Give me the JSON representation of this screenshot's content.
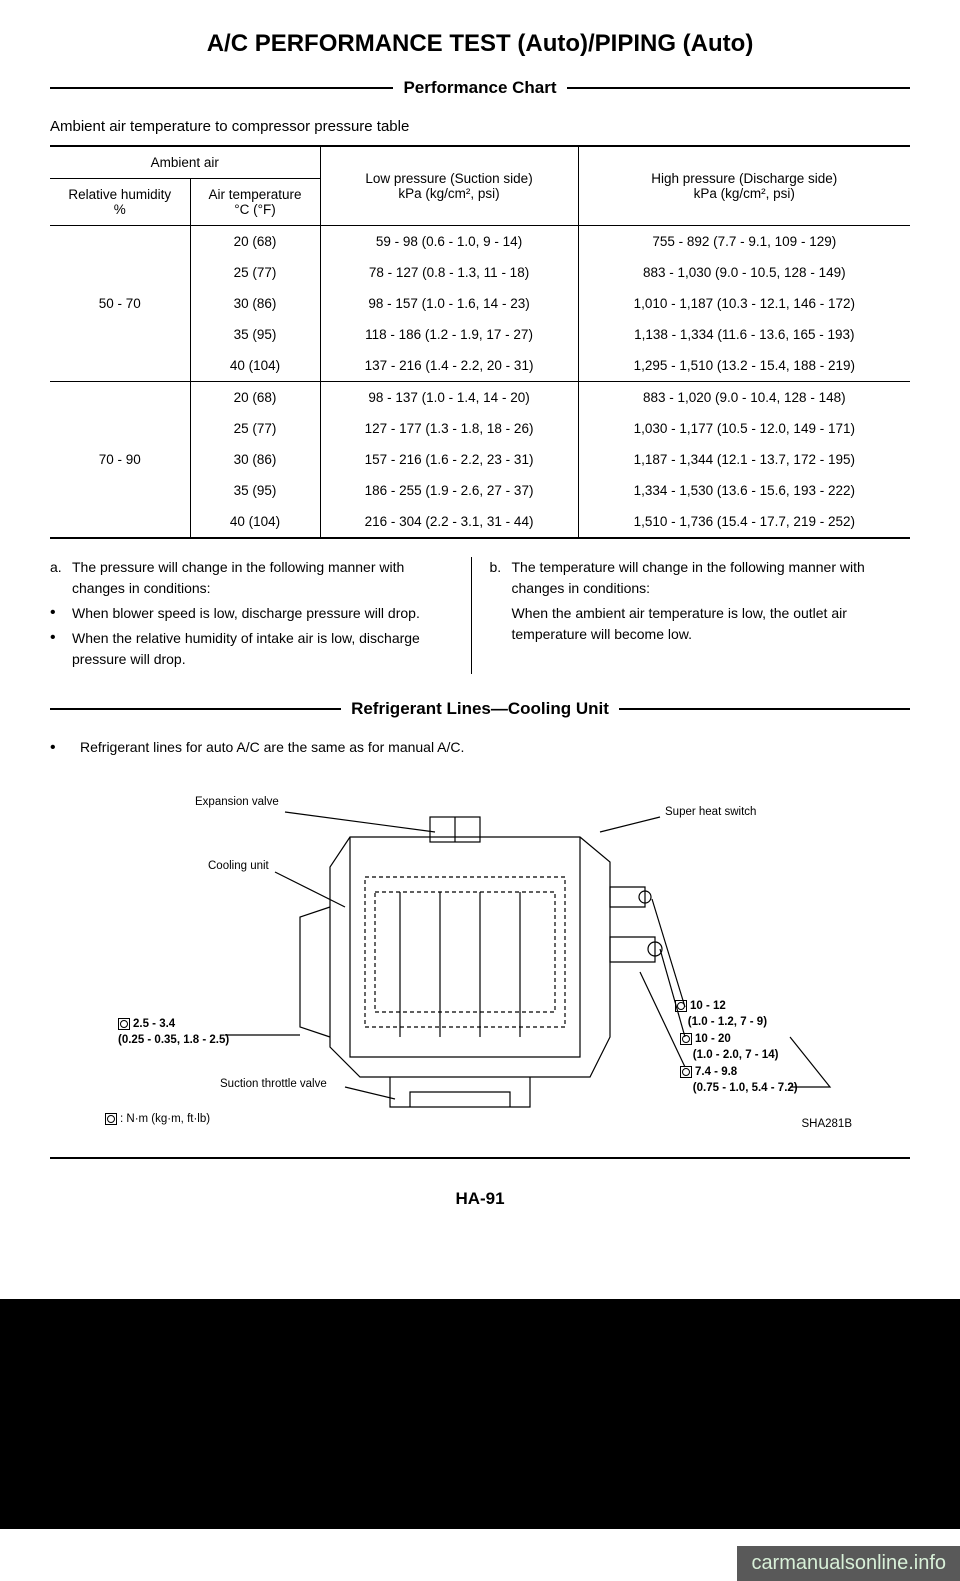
{
  "title": "A/C PERFORMANCE TEST (Auto)/PIPING (Auto)",
  "section1": "Performance Chart",
  "subtitle": "Ambient air temperature to compressor pressure table",
  "table": {
    "header_group": "Ambient air",
    "col_rh": "Relative humidity\n%",
    "col_at": "Air temperature\n°C (°F)",
    "col_low": "Low pressure (Suction side)\nkPa (kg/cm², psi)",
    "col_high": "High pressure (Discharge side)\nkPa (kg/cm², psi)",
    "groups": [
      {
        "rh": "50 - 70",
        "rows": [
          {
            "t": "20 (68)",
            "low": "59 - 98 (0.6 - 1.0, 9 - 14)",
            "high": "755 - 892 (7.7 - 9.1, 109 - 129)"
          },
          {
            "t": "25 (77)",
            "low": "78 - 127 (0.8 - 1.3, 11 - 18)",
            "high": "883 - 1,030 (9.0 - 10.5, 128 - 149)"
          },
          {
            "t": "30 (86)",
            "low": "98 - 157 (1.0 - 1.6, 14 - 23)",
            "high": "1,010 - 1,187 (10.3 - 12.1, 146 - 172)"
          },
          {
            "t": "35 (95)",
            "low": "118 - 186 (1.2 - 1.9, 17 - 27)",
            "high": "1,138 - 1,334 (11.6 - 13.6, 165 - 193)"
          },
          {
            "t": "40 (104)",
            "low": "137 - 216 (1.4 - 2.2, 20 - 31)",
            "high": "1,295 - 1,510 (13.2 - 15.4, 188 - 219)"
          }
        ]
      },
      {
        "rh": "70 - 90",
        "rows": [
          {
            "t": "20 (68)",
            "low": "98 - 137 (1.0 - 1.4, 14 - 20)",
            "high": "883 - 1,020 (9.0 - 10.4, 128 - 148)"
          },
          {
            "t": "25 (77)",
            "low": "127 - 177 (1.3 - 1.8, 18 - 26)",
            "high": "1,030 - 1,177 (10.5 - 12.0, 149 - 171)"
          },
          {
            "t": "30 (86)",
            "low": "157 - 216 (1.6 - 2.2, 23 - 31)",
            "high": "1,187 - 1,344 (12.1 - 13.7, 172 - 195)"
          },
          {
            "t": "35 (95)",
            "low": "186 - 255 (1.9 - 2.6, 27 - 37)",
            "high": "1,334 - 1,530 (13.6 - 15.6, 193 - 222)"
          },
          {
            "t": "40 (104)",
            "low": "216 - 304 (2.2 - 3.1, 31 - 44)",
            "high": "1,510 - 1,736 (15.4 - 17.7, 219 - 252)"
          }
        ]
      }
    ]
  },
  "note_a_lead": "a.",
  "note_a_1": "The pressure will change in the following manner with changes in conditions:",
  "note_a_2": "When blower speed is low, discharge pressure will drop.",
  "note_a_3": "When the relative humidity of intake air is low, discharge pressure will drop.",
  "note_b_lead": "b.",
  "note_b_1": "The temperature will change in the following manner with changes in conditions:",
  "note_b_2": "When the ambient air temperature is low, the outlet air temperature will become low.",
  "section2": "Refrigerant Lines—Cooling Unit",
  "ref_note": "Refrigerant lines for auto A/C are the same as for manual A/C.",
  "diagram": {
    "expansion_valve": "Expansion valve",
    "cooling_unit": "Cooling unit",
    "super_heat": "Super heat switch",
    "torque1_a": "2.5 - 3.4",
    "torque1_b": "(0.25 - 0.35, 1.8 - 2.5)",
    "suction": "Suction throttle valve",
    "legend": ": N·m (kg·m, ft·lb)",
    "torque2_a": "10 - 12",
    "torque2_b": "(1.0 - 1.2, 7 - 9)",
    "torque3_a": "10 - 20",
    "torque3_b": "(1.0 - 2.0, 7 - 14)",
    "torque4_a": "7.4 - 9.8",
    "torque4_b": "(0.75 - 1.0, 5.4 - 7.2)",
    "code": "SHA281B"
  },
  "page_num": "HA-91",
  "watermark": "carmanualsonline.info"
}
